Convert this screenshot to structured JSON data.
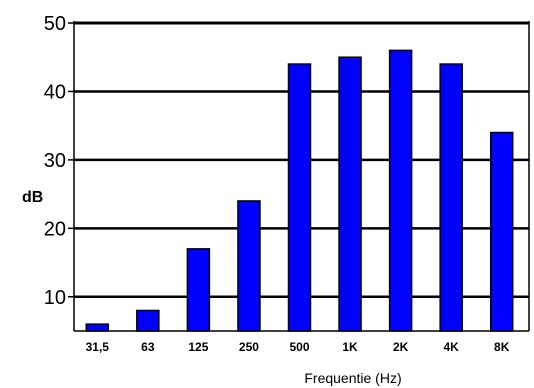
{
  "chart_data": {
    "type": "bar",
    "title": "",
    "xlabel": "Frequentie (Hz)",
    "ylabel": "dB",
    "categories": [
      "31,5",
      "63",
      "125",
      "250",
      "500",
      "1K",
      "2K",
      "4K",
      "8K"
    ],
    "values": [
      6,
      8,
      17,
      24,
      44,
      45,
      46,
      44,
      34
    ],
    "ylim": [
      5,
      50
    ],
    "yticks": [
      "10",
      "20",
      "30",
      "40",
      "50"
    ],
    "grid": "horizontal",
    "legend": "none",
    "bar_color": "#0000ff",
    "bar_edge_color": "#000000"
  }
}
